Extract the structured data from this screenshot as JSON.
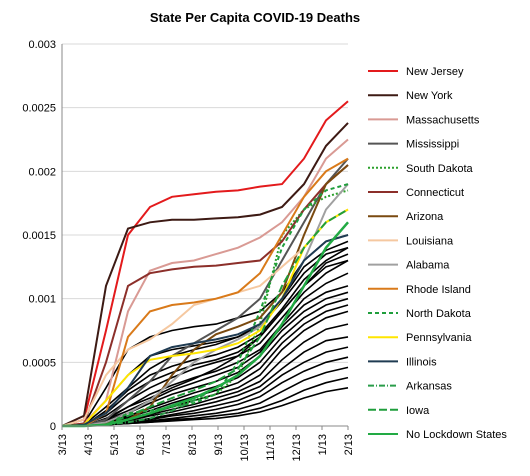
{
  "chart_data": {
    "type": "line",
    "title": "State Per Capita COVID-19 Deaths",
    "xlabel": "",
    "ylabel": "",
    "x_ticks": [
      "3/13",
      "4/13",
      "5/13",
      "6/13",
      "7/13",
      "8/13",
      "9/13",
      "10/13",
      "11/13",
      "12/13",
      "1/13",
      "2/13"
    ],
    "y_ticks": [
      "0",
      "0.0005",
      "0.001",
      "0.0015",
      "0.002",
      "0.0025",
      "0.003"
    ],
    "ylim": [
      0,
      0.003
    ],
    "grid": "horizontal",
    "legend_position": "right",
    "series": [
      {
        "name": "New Jersey",
        "color": "#e31a1c",
        "dash": "",
        "width": 2,
        "values": [
          0,
          5e-05,
          0.00075,
          0.0015,
          0.00172,
          0.0018,
          0.00182,
          0.00184,
          0.00185,
          0.00188,
          0.0019,
          0.0021,
          0.0024,
          0.00255
        ]
      },
      {
        "name": "New York",
        "color": "#3d1a14",
        "dash": "",
        "width": 2,
        "values": [
          0,
          8e-05,
          0.0011,
          0.00155,
          0.0016,
          0.00162,
          0.00162,
          0.00163,
          0.00164,
          0.00166,
          0.00172,
          0.0019,
          0.0022,
          0.00238
        ]
      },
      {
        "name": "Massachusetts",
        "color": "#d99a94",
        "dash": "",
        "width": 2,
        "values": [
          0,
          2e-05,
          0.0002,
          0.0009,
          0.00122,
          0.00128,
          0.0013,
          0.00135,
          0.0014,
          0.00148,
          0.0016,
          0.0018,
          0.0021,
          0.00225
        ]
      },
      {
        "name": "Mississippi",
        "color": "#555555",
        "dash": "",
        "width": 2,
        "values": [
          0,
          0,
          5e-05,
          0.0002,
          0.00035,
          0.00055,
          0.00065,
          0.00075,
          0.00085,
          0.001,
          0.0013,
          0.0016,
          0.0019,
          0.0021
        ]
      },
      {
        "name": "South Dakota",
        "color": "#2ca02c",
        "dash": "2,2",
        "width": 2,
        "values": [
          0,
          0,
          1e-05,
          5e-05,
          0.0001,
          0.00015,
          0.0002,
          0.00025,
          0.0004,
          0.0008,
          0.0015,
          0.0017,
          0.0018,
          0.00185
        ]
      },
      {
        "name": "Connecticut",
        "color": "#8c2f2a",
        "dash": "",
        "width": 2,
        "values": [
          0,
          2e-05,
          0.0005,
          0.0011,
          0.0012,
          0.00123,
          0.00125,
          0.00126,
          0.00128,
          0.0013,
          0.00145,
          0.0017,
          0.0019,
          0.00205
        ]
      },
      {
        "name": "Arizona",
        "color": "#7a4a10",
        "dash": "",
        "width": 2,
        "values": [
          0,
          0,
          2e-05,
          5e-05,
          0.00015,
          0.0004,
          0.0006,
          0.00072,
          0.00078,
          0.00085,
          0.00105,
          0.0015,
          0.0019,
          0.00205
        ]
      },
      {
        "name": "Louisiana",
        "color": "#f5c8a0",
        "dash": "",
        "width": 2,
        "values": [
          0,
          5e-05,
          0.0004,
          0.0006,
          0.00068,
          0.0008,
          0.00095,
          0.001,
          0.00105,
          0.0011,
          0.00125,
          0.0014,
          0.0016,
          0.0017
        ]
      },
      {
        "name": "Alabama",
        "color": "#a0a0a0",
        "dash": "",
        "width": 2,
        "values": [
          0,
          0,
          3e-05,
          0.0001,
          0.0002,
          0.00035,
          0.0005,
          0.0006,
          0.00068,
          0.00078,
          0.001,
          0.0013,
          0.0017,
          0.0019
        ]
      },
      {
        "name": "Rhode Island",
        "color": "#d97a1a",
        "dash": "",
        "width": 2,
        "values": [
          0,
          0,
          0.0001,
          0.0007,
          0.0009,
          0.00095,
          0.00097,
          0.001,
          0.00105,
          0.0012,
          0.0015,
          0.0018,
          0.002,
          0.0021
        ]
      },
      {
        "name": "North Dakota",
        "color": "#1f9e3c",
        "dash": "4,3",
        "width": 2,
        "values": [
          0,
          0,
          1e-05,
          0.0001,
          0.00012,
          0.00015,
          0.00018,
          0.00025,
          0.0005,
          0.0009,
          0.0014,
          0.0017,
          0.00185,
          0.0019
        ]
      },
      {
        "name": "Pennsylvania",
        "color": "#ffe600",
        "dash": "",
        "width": 2,
        "values": [
          0,
          1e-05,
          0.0002,
          0.0004,
          0.00052,
          0.00055,
          0.00057,
          0.0006,
          0.00065,
          0.00075,
          0.001,
          0.0014,
          0.0016,
          0.0017
        ]
      },
      {
        "name": "Illinois",
        "color": "#1f3b52",
        "dash": "",
        "width": 2,
        "values": [
          0,
          1e-05,
          0.0001,
          0.0003,
          0.00055,
          0.00062,
          0.00065,
          0.00068,
          0.00072,
          0.0008,
          0.001,
          0.0013,
          0.00145,
          0.0015
        ]
      },
      {
        "name": "Arkansas",
        "color": "#2a9d4a",
        "dash": "6,2,1,2",
        "width": 2,
        "values": [
          0,
          0,
          1e-05,
          3e-05,
          6e-05,
          0.00012,
          0.0002,
          0.0003,
          0.0004,
          0.00055,
          0.0008,
          0.0011,
          0.0014,
          0.0016
        ]
      },
      {
        "name": "Iowa",
        "color": "#1f9e3c",
        "dash": "8,3",
        "width": 2,
        "values": [
          0,
          0,
          1e-05,
          8e-05,
          0.00015,
          0.00022,
          0.00028,
          0.00035,
          0.00045,
          0.0007,
          0.0011,
          0.0014,
          0.0016,
          0.0017
        ]
      },
      {
        "name": "No Lockdown States",
        "color": "#22aa44",
        "dash": "",
        "width": 2.5,
        "values": [
          0,
          0,
          1e-05,
          5e-05,
          0.0001,
          0.00016,
          0.00022,
          0.0003,
          0.0004,
          0.00055,
          0.0008,
          0.0011,
          0.0014,
          0.0016
        ]
      }
    ],
    "other_states": [
      [
        0,
        2e-05,
        0.0003,
        0.0006,
        0.0007,
        0.00075,
        0.00078,
        0.0008,
        0.00085,
        0.0009,
        0.00105,
        0.0013,
        0.00145,
        0.0015
      ],
      [
        0,
        1e-05,
        0.00015,
        0.0003,
        0.00045,
        0.00055,
        0.0006,
        0.00064,
        0.0007,
        0.0008,
        0.001,
        0.00125,
        0.00138,
        0.00145
      ],
      [
        0,
        1e-05,
        0.0001,
        0.00025,
        0.00035,
        0.00042,
        0.00048,
        0.00052,
        0.00058,
        0.0007,
        0.0009,
        0.0011,
        0.00128,
        0.00135
      ],
      [
        0,
        1e-05,
        8e-05,
        0.0002,
        0.0003,
        0.00038,
        0.00045,
        0.0005,
        0.00055,
        0.00065,
        0.00085,
        0.00105,
        0.0012,
        0.0013
      ],
      [
        0,
        0,
        6e-05,
        0.00015,
        0.00025,
        0.00032,
        0.00038,
        0.00043,
        0.0005,
        0.0006,
        0.0008,
        0.001,
        0.00112,
        0.0012
      ],
      [
        0,
        0,
        5e-05,
        0.00012,
        0.0002,
        0.00028,
        0.00034,
        0.0004,
        0.00046,
        0.00058,
        0.00078,
        0.00095,
        0.00105,
        0.0011
      ],
      [
        0,
        0,
        4e-05,
        0.0001,
        0.00018,
        0.00025,
        0.0003,
        0.00035,
        0.00042,
        0.00055,
        0.00075,
        0.0009,
        0.001,
        0.00105
      ],
      [
        0,
        0,
        3e-05,
        8e-05,
        0.00014,
        0.0002,
        0.00026,
        0.00031,
        0.00038,
        0.0005,
        0.0007,
        0.00085,
        0.00095,
        0.001
      ],
      [
        0,
        0,
        3e-05,
        7e-05,
        0.00012,
        0.00018,
        0.00023,
        0.00028,
        0.00034,
        0.00045,
        0.00065,
        0.0008,
        0.0009,
        0.00095
      ],
      [
        0,
        0,
        2e-05,
        6e-05,
        0.0001,
        0.00015,
        0.0002,
        0.00025,
        0.0003,
        0.0004,
        0.0006,
        0.00075,
        0.00085,
        0.0009
      ],
      [
        0,
        0,
        2e-05,
        5e-05,
        9e-05,
        0.00013,
        0.00017,
        0.00022,
        0.00027,
        0.00035,
        0.00052,
        0.00066,
        0.00076,
        0.0008
      ],
      [
        0,
        0,
        2e-05,
        4e-05,
        8e-05,
        0.00011,
        0.00015,
        0.00019,
        0.00024,
        0.00031,
        0.00045,
        0.00058,
        0.00067,
        0.0007
      ],
      [
        0,
        0,
        1e-05,
        3e-05,
        6e-05,
        9e-05,
        0.00012,
        0.00016,
        0.0002,
        0.00027,
        0.0004,
        0.0005,
        0.00058,
        0.00062
      ],
      [
        0,
        0,
        1e-05,
        3e-05,
        5e-05,
        8e-05,
        0.0001,
        0.00013,
        0.00017,
        0.00023,
        0.00034,
        0.00043,
        0.0005,
        0.00054
      ],
      [
        0,
        0,
        1e-05,
        2e-05,
        4e-05,
        6e-05,
        8e-05,
        0.0001,
        0.00013,
        0.00018,
        0.00027,
        0.00036,
        0.00042,
        0.00046
      ],
      [
        0,
        0,
        1e-05,
        2e-05,
        3e-05,
        5e-05,
        6e-05,
        8e-05,
        0.0001,
        0.00014,
        0.0002,
        0.00028,
        0.00034,
        0.00038
      ],
      [
        0,
        0,
        1e-05,
        2e-05,
        3e-05,
        4e-05,
        5e-05,
        6e-05,
        8e-05,
        0.00011,
        0.00016,
        0.00022,
        0.00027,
        0.0003
      ],
      [
        0,
        1e-05,
        0.0002,
        0.0004,
        0.00055,
        0.0006,
        0.00063,
        0.00066,
        0.0007,
        0.00078,
        0.00098,
        0.0012,
        0.00135,
        0.0014
      ],
      [
        0,
        0,
        0.00012,
        0.00028,
        0.0004,
        0.00047,
        0.00052,
        0.00056,
        0.00062,
        0.00072,
        0.00092,
        0.00115,
        0.0013,
        0.0014
      ],
      [
        0,
        0,
        5e-05,
        0.00015,
        0.00022,
        0.0003,
        0.00037,
        0.00045,
        0.00055,
        0.0007,
        0.0009,
        0.0011,
        0.00125,
        0.0013
      ]
    ],
    "other_states_color": "#000000"
  }
}
